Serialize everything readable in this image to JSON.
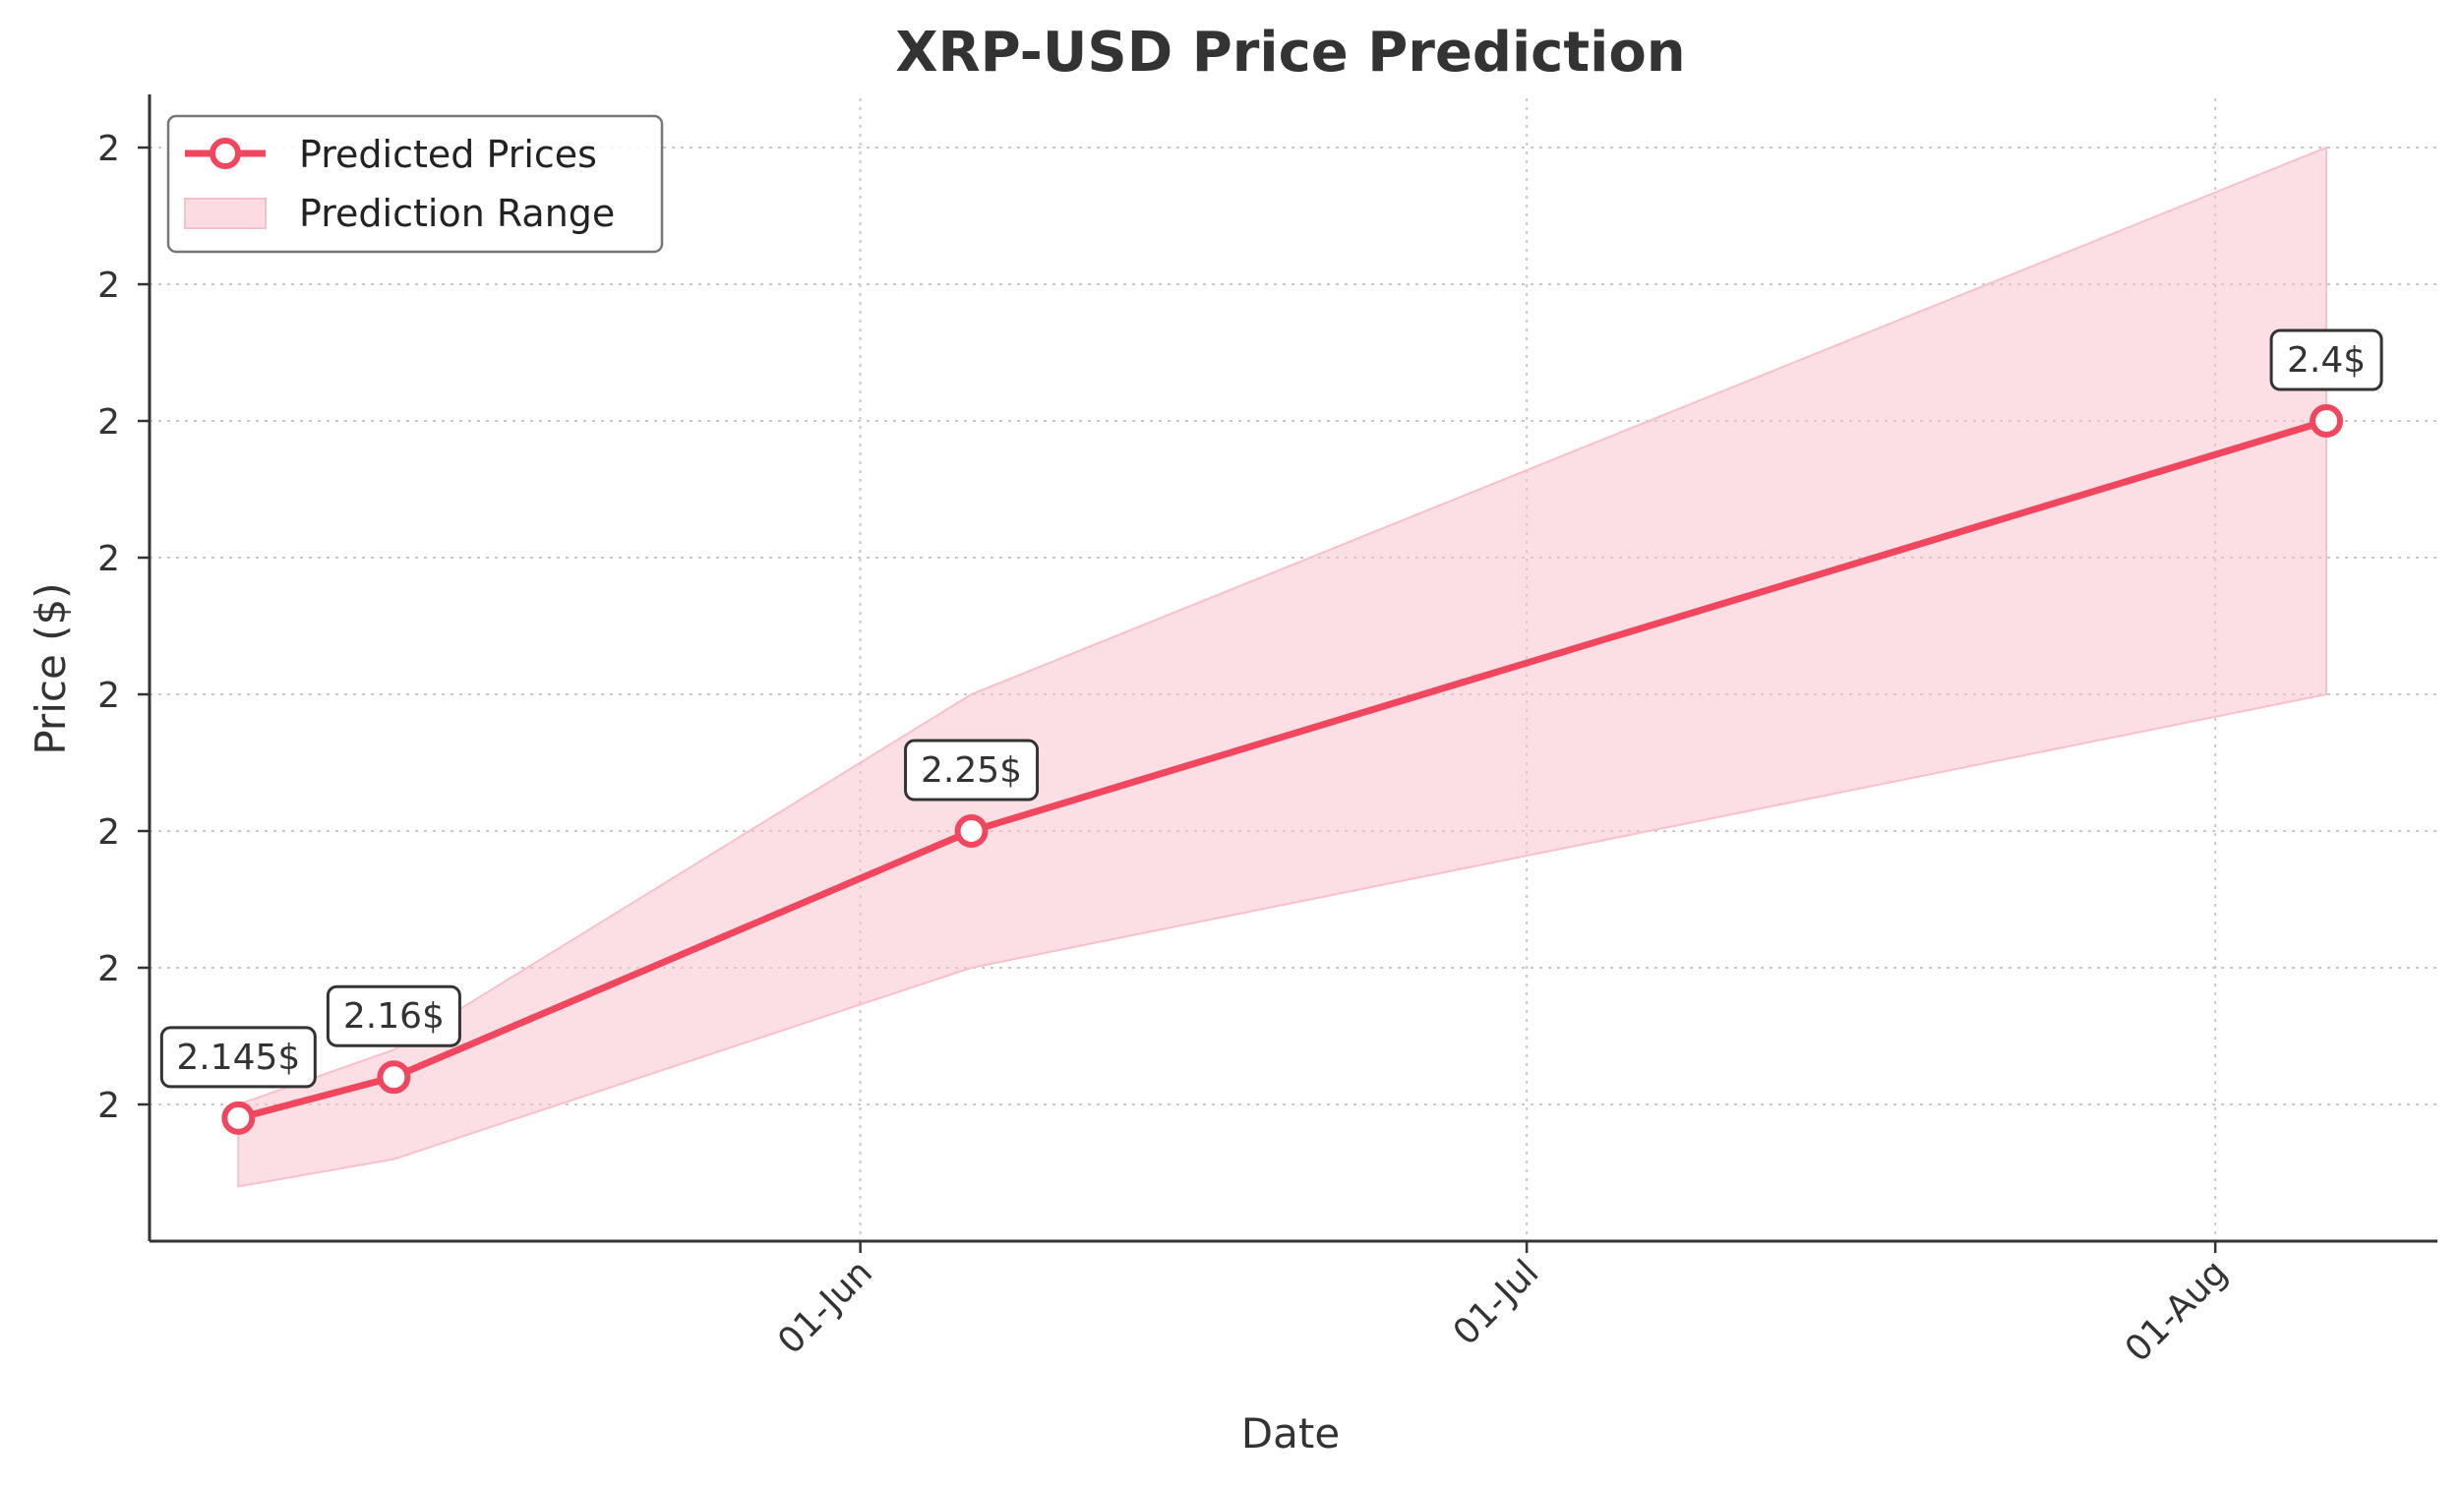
{
  "chart_data": {
    "type": "line",
    "title": "XRP-USD Price Prediction",
    "xlabel": "Date",
    "ylabel": "Price ($)",
    "x": [
      "2024-05-04",
      "2024-05-11",
      "2024-06-06",
      "2024-08-06"
    ],
    "xlim": [
      "2024-04-30",
      "2024-08-11"
    ],
    "xticks": [
      {
        "date": "2024-06-01",
        "label": "01-Jun"
      },
      {
        "date": "2024-07-01",
        "label": "01-Jul"
      },
      {
        "date": "2024-08-01",
        "label": "01-Aug"
      }
    ],
    "yticks": [
      {
        "value": 2.15,
        "label": "2"
      },
      {
        "value": 2.2,
        "label": "2"
      },
      {
        "value": 2.25,
        "label": "2"
      },
      {
        "value": 2.3,
        "label": "2"
      },
      {
        "value": 2.35,
        "label": "2"
      },
      {
        "value": 2.4,
        "label": "2"
      },
      {
        "value": 2.45,
        "label": "2"
      },
      {
        "value": 2.5,
        "label": "2"
      }
    ],
    "ylim": [
      2.1,
      2.518
    ],
    "series": [
      {
        "name": "Predicted Prices",
        "color": "#f0475f",
        "values": [
          2.145,
          2.16,
          2.25,
          2.4
        ],
        "labels": [
          "2.145$",
          "2.16$",
          "2.25$",
          "2.4$"
        ]
      }
    ],
    "range": {
      "name": "Prediction Range",
      "color": "#f9c0cb",
      "x": [
        "2024-05-04",
        "2024-05-11",
        "2024-06-06",
        "2024-08-06"
      ],
      "lower": [
        2.12,
        2.13,
        2.2,
        2.3
      ],
      "upper": [
        2.15,
        2.17,
        2.3,
        2.5
      ]
    },
    "grid": true,
    "legend": "top-left"
  }
}
